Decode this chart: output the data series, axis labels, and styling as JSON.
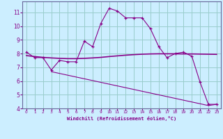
{
  "xlabel": "Windchill (Refroidissement éolien,°C)",
  "background_color": "#cceeff",
  "grid_color": "#99cccc",
  "line_color": "#880088",
  "spine_color": "#666699",
  "xlim": [
    -0.5,
    23.5
  ],
  "ylim": [
    4.0,
    11.8
  ],
  "xticks": [
    0,
    1,
    2,
    3,
    4,
    5,
    6,
    7,
    8,
    9,
    10,
    11,
    12,
    13,
    14,
    15,
    16,
    17,
    18,
    19,
    20,
    21,
    22,
    23
  ],
  "yticks": [
    4,
    5,
    6,
    7,
    8,
    9,
    10,
    11
  ],
  "curve1_x": [
    0,
    1,
    2,
    3,
    4,
    5,
    6,
    7,
    8,
    9,
    10,
    11,
    12,
    13,
    14,
    15,
    16,
    17,
    18,
    19,
    20,
    21,
    22,
    23
  ],
  "curve1_y": [
    8.1,
    7.7,
    7.7,
    6.8,
    7.5,
    7.4,
    7.4,
    8.9,
    8.5,
    10.2,
    11.3,
    11.1,
    10.6,
    10.6,
    10.6,
    9.8,
    8.5,
    7.7,
    8.0,
    8.1,
    7.8,
    5.9,
    4.3,
    4.3
  ],
  "curve2_x": [
    0,
    1,
    2,
    3,
    4,
    5,
    6,
    7,
    8,
    9,
    10,
    11,
    12,
    13,
    14,
    15,
    16,
    17,
    18,
    19,
    20,
    21,
    22,
    23
  ],
  "curve2_y": [
    7.85,
    7.78,
    7.72,
    7.68,
    7.65,
    7.63,
    7.63,
    7.65,
    7.68,
    7.72,
    7.78,
    7.83,
    7.88,
    7.92,
    7.95,
    7.97,
    7.98,
    7.98,
    7.98,
    7.97,
    7.97,
    7.96,
    7.95,
    7.94
  ],
  "curve3_x": [
    3,
    4,
    5,
    6,
    7,
    8,
    9,
    10,
    11,
    12,
    13,
    14,
    15,
    16,
    17,
    18,
    19,
    20,
    21,
    22,
    23
  ],
  "curve3_y": [
    6.68,
    6.55,
    6.42,
    6.29,
    6.16,
    6.03,
    5.9,
    5.77,
    5.64,
    5.51,
    5.38,
    5.25,
    5.12,
    4.99,
    4.86,
    4.73,
    4.6,
    4.47,
    4.34,
    4.21,
    4.3
  ]
}
